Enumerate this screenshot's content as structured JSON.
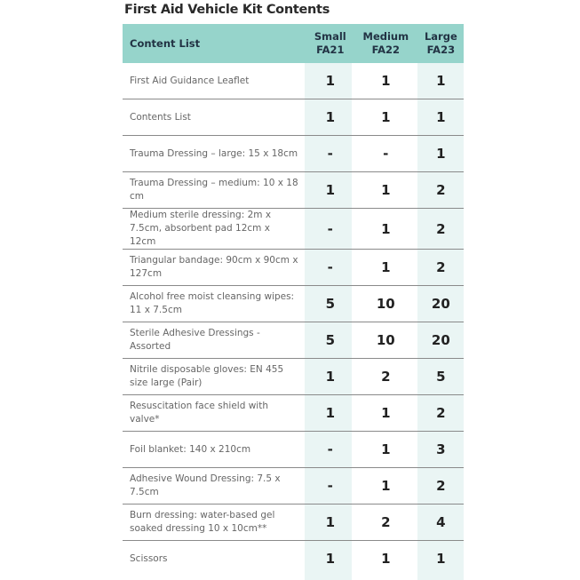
{
  "title": "First Aid Vehicle Kit Contents",
  "headers": {
    "item": "Content List",
    "small": [
      "Small",
      "FA21"
    ],
    "medium": [
      "Medium",
      "FA22"
    ],
    "large": [
      "Large",
      "FA23"
    ]
  },
  "rows": [
    {
      "item": "First Aid Guidance Leaflet",
      "small": "1",
      "medium": "1",
      "large": "1"
    },
    {
      "item": "Contents List",
      "small": "1",
      "medium": "1",
      "large": "1"
    },
    {
      "item": "Trauma Dressing – large: 15 x 18cm",
      "small": "-",
      "medium": "-",
      "large": "1"
    },
    {
      "item": "Trauma Dressing – medium: 10 x 18 cm",
      "small": "1",
      "medium": "1",
      "large": "2"
    },
    {
      "item": "Medium sterile dressing: 2m x 7.5cm, absorbent pad 12cm x 12cm",
      "small": "-",
      "medium": "1",
      "large": "2"
    },
    {
      "item": "Triangular bandage: 90cm x 90cm x 127cm",
      "small": "-",
      "medium": "1",
      "large": "2"
    },
    {
      "item": "Alcohol free moist cleansing wipes: 11 x 7.5cm",
      "small": "5",
      "medium": "10",
      "large": "20"
    },
    {
      "item": "Sterile Adhesive Dressings - Assorted",
      "small": "5",
      "medium": "10",
      "large": "20"
    },
    {
      "item": "Nitrile disposable gloves: EN 455 size large (Pair)",
      "small": "1",
      "medium": "2",
      "large": "5"
    },
    {
      "item": "Resuscitation face shield with valve*",
      "small": "1",
      "medium": "1",
      "large": "2"
    },
    {
      "item": "Foil blanket: 140 x 210cm",
      "small": "-",
      "medium": "1",
      "large": "3"
    },
    {
      "item": "Adhesive Wound Dressing: 7.5 x 7.5cm",
      "small": "-",
      "medium": "1",
      "large": "2"
    },
    {
      "item": "Burn dressing: water-based gel soaked dressing 10 x 10cm**",
      "small": "1",
      "medium": "2",
      "large": "4"
    },
    {
      "item": "Scissors",
      "small": "1",
      "medium": "1",
      "large": "1"
    }
  ],
  "colors": {
    "header": "#96d4cb",
    "column_shade": "#eaf5f4"
  }
}
